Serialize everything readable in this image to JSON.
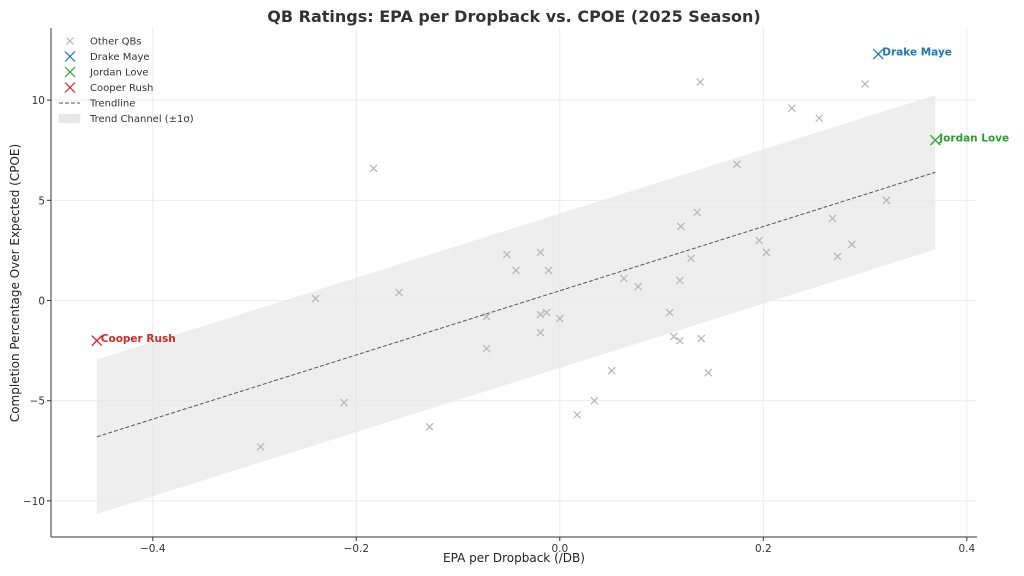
{
  "chart_data": {
    "type": "scatter",
    "title": "QB Ratings: EPA per Dropback vs. CPOE (2025 Season)",
    "xlabel": "EPA per Dropback (/DB)",
    "ylabel": "Completion Percentage Over Expected (CPOE)",
    "xlim": [
      -0.5,
      0.41
    ],
    "ylim": [
      -11.8,
      13.6
    ],
    "xticks": [
      -0.4,
      -0.2,
      0.0,
      0.2,
      0.4
    ],
    "xtick_labels": [
      "−0.4",
      "−0.2",
      "0.0",
      "0.2",
      "0.4"
    ],
    "yticks": [
      -10,
      -5,
      0,
      5,
      10
    ],
    "ytick_labels": [
      "−10",
      "−5",
      "0",
      "5",
      "10"
    ],
    "grid": true,
    "legend_position": "top-left",
    "colors": {
      "other": "#b5b5b5",
      "drake_maye": "#1f77b4",
      "jordan_love": "#2ca02c",
      "cooper_rush": "#d62728",
      "trendline": "#555555",
      "channel": "#e8e8e8"
    },
    "series": [
      {
        "name": "Other QBs",
        "marker": "x",
        "points": [
          [
            0.138,
            10.9
          ],
          [
            0.3,
            10.8
          ],
          [
            0.228,
            9.6
          ],
          [
            0.255,
            9.1
          ],
          [
            -0.183,
            6.6
          ],
          [
            0.174,
            6.8
          ],
          [
            0.321,
            5.0
          ],
          [
            0.268,
            4.1
          ],
          [
            0.135,
            4.4
          ],
          [
            0.119,
            3.7
          ],
          [
            0.196,
            3.0
          ],
          [
            0.203,
            2.4
          ],
          [
            0.287,
            2.8
          ],
          [
            0.273,
            2.2
          ],
          [
            0.129,
            2.1
          ],
          [
            -0.052,
            2.3
          ],
          [
            -0.019,
            2.4
          ],
          [
            -0.043,
            1.5
          ],
          [
            -0.011,
            1.5
          ],
          [
            0.063,
            1.1
          ],
          [
            0.077,
            0.7
          ],
          [
            0.118,
            1.0
          ],
          [
            -0.158,
            0.4
          ],
          [
            -0.24,
            0.1
          ],
          [
            -0.072,
            -0.8
          ],
          [
            -0.019,
            -0.7
          ],
          [
            -0.013,
            -0.6
          ],
          [
            0.0,
            -0.9
          ],
          [
            0.108,
            -0.6
          ],
          [
            -0.019,
            -1.6
          ],
          [
            0.112,
            -1.8
          ],
          [
            0.118,
            -2.0
          ],
          [
            0.139,
            -1.9
          ],
          [
            -0.072,
            -2.4
          ],
          [
            0.051,
            -3.5
          ],
          [
            0.146,
            -3.6
          ],
          [
            0.034,
            -5.0
          ],
          [
            0.017,
            -5.7
          ],
          [
            -0.212,
            -5.1
          ],
          [
            -0.128,
            -6.3
          ],
          [
            -0.294,
            -7.3
          ]
        ]
      },
      {
        "name": "Drake Maye",
        "marker": "x",
        "points": [
          [
            0.313,
            12.3
          ]
        ],
        "label": "Drake Maye"
      },
      {
        "name": "Jordan Love",
        "marker": "x",
        "points": [
          [
            0.369,
            8.0
          ]
        ],
        "label": "Jordan Love"
      },
      {
        "name": "Cooper Rush",
        "marker": "x",
        "points": [
          [
            -0.455,
            -2.0
          ]
        ],
        "label": "Cooper Rush"
      }
    ],
    "trendline": {
      "name": "Trendline",
      "x": [
        -0.455,
        0.369
      ],
      "y": [
        -6.8,
        6.4
      ]
    },
    "channel": {
      "name": "Trend Channel (±1σ)",
      "sigma": 3.85
    },
    "legend": [
      "Other QBs",
      "Drake Maye",
      "Jordan Love",
      "Cooper Rush",
      "Trendline",
      "Trend Channel (±1σ)"
    ]
  }
}
